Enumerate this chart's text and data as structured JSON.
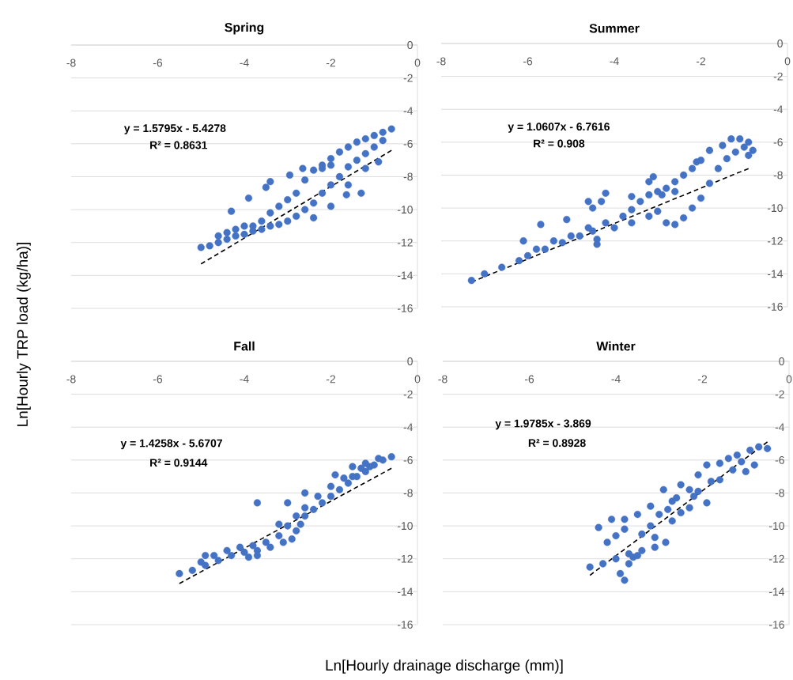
{
  "chart_data": [
    {
      "type": "scatter",
      "title": "Spring",
      "ylabel": "Ln[Hourly TRP load (kg/ha)]",
      "xlim": [
        -8,
        0
      ],
      "ylim": [
        -16,
        0
      ],
      "xticks": [
        -8,
        -6,
        -4,
        -2,
        0
      ],
      "yticks": [
        0,
        -2,
        -4,
        -6,
        -8,
        -10,
        -12,
        -14,
        -16
      ],
      "grid": "y",
      "marker": "circle",
      "annotations": [
        "y = 1.5795x - 5.4278",
        "R² = 0.8631"
      ],
      "series": [
        {
          "type": "scatter",
          "color": "#4472c4",
          "x": [
            -5.0,
            -4.8,
            -4.6,
            -4.4,
            -4.2,
            -4.0,
            -3.8,
            -3.6,
            -3.4,
            -3.2,
            -3.0,
            -2.8,
            -2.6,
            -2.4,
            -2.2,
            -2.0,
            -1.8,
            -1.6,
            -1.4,
            -1.2,
            -1.0,
            -0.8,
            -0.6,
            -0.8,
            -1.0,
            -1.2,
            -1.4,
            -1.6,
            -1.8,
            -2.0,
            -2.2,
            -2.4,
            -2.6,
            -2.8,
            -3.0,
            -3.2,
            -3.4,
            -3.6,
            -3.8,
            -4.0,
            -4.2,
            -4.4,
            -4.6,
            -4.3,
            -3.9,
            -3.5,
            -2.65,
            -2.95,
            -3.4,
            -2.2,
            -2.0,
            -1.64,
            -1.3,
            -0.9,
            -2.4,
            -2.0,
            -1.6,
            -1.2
          ],
          "values": [
            -12.3,
            -12.2,
            -12.0,
            -11.8,
            -11.6,
            -11.5,
            -11.3,
            -11.2,
            -11.0,
            -10.9,
            -10.7,
            -10.4,
            -10.0,
            -9.6,
            -9.0,
            -8.5,
            -8.0,
            -7.4,
            -7.0,
            -6.6,
            -6.2,
            -5.8,
            -5.1,
            -5.3,
            -5.5,
            -5.7,
            -5.9,
            -6.2,
            -6.5,
            -6.9,
            -7.3,
            -7.6,
            -8.2,
            -9.0,
            -9.4,
            -9.8,
            -10.2,
            -10.7,
            -11.0,
            -11.0,
            -11.2,
            -11.4,
            -11.6,
            -10.1,
            -9.3,
            -8.65,
            -7.5,
            -7.9,
            -8.3,
            -7.5,
            -7.3,
            -9.1,
            -9.0,
            -7.1,
            -10.5,
            -9.8,
            -8.5,
            -7.5
          ]
        },
        {
          "type": "line",
          "marker": "none",
          "color": "#000000",
          "line_style": "dashed",
          "x": [
            -5.0,
            -0.6
          ],
          "values": [
            -13.3,
            -6.4
          ]
        }
      ]
    },
    {
      "type": "scatter",
      "title": "Summer",
      "xlim": [
        -8,
        0
      ],
      "ylim": [
        -16,
        0
      ],
      "xticks": [
        -8,
        -6,
        -4,
        -2,
        0
      ],
      "yticks": [
        0,
        -2,
        -4,
        -6,
        -8,
        -10,
        -12,
        -14,
        -16
      ],
      "grid": "y",
      "marker": "circle",
      "annotations": [
        "y = 1.0607x - 6.7616",
        "R² = 0.908"
      ],
      "series": [
        {
          "type": "scatter",
          "color": "#4472c4",
          "x": [
            -7.3,
            -7.0,
            -6.6,
            -6.2,
            -6.0,
            -5.6,
            -5.2,
            -4.8,
            -4.5,
            -4.4,
            -4.4,
            -4.0,
            -3.6,
            -3.2,
            -3.0,
            -2.8,
            -2.6,
            -2.4,
            -2.2,
            -2.0,
            -1.8,
            -1.6,
            -1.4,
            -1.2,
            -1.0,
            -0.8,
            -0.9,
            -1.1,
            -1.3,
            -1.5,
            -1.8,
            -2.0,
            -2.2,
            -2.4,
            -2.6,
            -2.8,
            -3.0,
            -3.2,
            -3.4,
            -3.6,
            -3.8,
            -4.2,
            -4.6,
            -5.0,
            -5.4,
            -5.8,
            -6.1,
            -5.7,
            -5.1,
            -4.6,
            -4.5,
            -4.3,
            -4.2,
            -3.6,
            -3.1,
            -3.2,
            -2.9,
            -2.6,
            -2.1,
            -0.9
          ],
          "values": [
            -14.4,
            -14.0,
            -13.6,
            -13.2,
            -12.9,
            -12.5,
            -12.1,
            -11.7,
            -11.4,
            -11.9,
            -12.2,
            -11.2,
            -10.9,
            -10.5,
            -10.2,
            -10.9,
            -11.0,
            -10.6,
            -10.0,
            -9.4,
            -8.5,
            -7.6,
            -7.0,
            -6.6,
            -6.3,
            -6.5,
            -6.0,
            -5.8,
            -5.8,
            -6.2,
            -6.5,
            -7.1,
            -7.6,
            -8.0,
            -8.4,
            -8.8,
            -9.0,
            -9.2,
            -9.6,
            -10.1,
            -10.5,
            -10.9,
            -11.2,
            -11.7,
            -12.0,
            -12.5,
            -12.0,
            -11.0,
            -10.7,
            -9.6,
            -10.0,
            -9.6,
            -9.1,
            -9.3,
            -8.1,
            -8.4,
            -9.2,
            -9.0,
            -7.2,
            -6.8
          ]
        },
        {
          "type": "line",
          "marker": "none",
          "color": "#000000",
          "line_style": "dashed",
          "x": [
            -7.3,
            -0.9
          ],
          "values": [
            -14.5,
            -7.6
          ]
        }
      ]
    },
    {
      "type": "scatter",
      "title": "Fall",
      "xlabel": "Ln[Hourly drainage discharge (mm)]",
      "xlim": [
        -8,
        0
      ],
      "ylim": [
        -16,
        0
      ],
      "xticks": [
        -8,
        -6,
        -4,
        -2,
        0
      ],
      "yticks": [
        0,
        -2,
        -4,
        -6,
        -8,
        -10,
        -12,
        -14,
        -16
      ],
      "grid": "y",
      "marker": "circle",
      "annotations": [
        "y = 1.4258x - 5.6707",
        "R² = 0.9144"
      ],
      "series": [
        {
          "type": "scatter",
          "color": "#4472c4",
          "x": [
            -5.5,
            -5.2,
            -4.9,
            -4.6,
            -4.3,
            -4.0,
            -3.7,
            -3.4,
            -3.1,
            -2.9,
            -2.8,
            -2.7,
            -2.6,
            -2.4,
            -2.2,
            -2.0,
            -1.8,
            -1.6,
            -1.4,
            -1.2,
            -1.0,
            -0.8,
            -0.6,
            -0.9,
            -1.2,
            -1.5,
            -1.3,
            -1.7,
            -2.0,
            -2.3,
            -2.6,
            -2.8,
            -3.0,
            -3.2,
            -3.5,
            -3.8,
            -4.1,
            -4.4,
            -4.7,
            -5.0,
            -4.9,
            -3.9,
            -3.7,
            -3.7,
            -3.0,
            -3.2,
            -2.6,
            -1.9,
            -1.5,
            -1.1
          ],
          "values": [
            -12.9,
            -12.7,
            -12.4,
            -12.1,
            -11.8,
            -11.6,
            -11.5,
            -11.3,
            -11.0,
            -10.8,
            -10.3,
            -9.9,
            -9.4,
            -9.0,
            -8.6,
            -8.2,
            -7.8,
            -7.4,
            -7.0,
            -6.7,
            -6.3,
            -6.0,
            -5.8,
            -5.9,
            -6.2,
            -6.4,
            -6.5,
            -7.1,
            -7.6,
            -8.2,
            -8.9,
            -9.4,
            -10.0,
            -10.6,
            -11.0,
            -11.2,
            -11.3,
            -11.5,
            -11.8,
            -12.2,
            -11.8,
            -11.9,
            -11.8,
            -8.6,
            -8.6,
            -9.9,
            -8.0,
            -6.9,
            -7.0,
            -6.4
          ]
        },
        {
          "type": "line",
          "marker": "none",
          "color": "#000000",
          "line_style": "dashed",
          "x": [
            -5.5,
            -0.6
          ],
          "values": [
            -13.5,
            -6.5
          ]
        }
      ]
    },
    {
      "type": "scatter",
      "title": "Winter",
      "xlim": [
        -8,
        0
      ],
      "ylim": [
        -16,
        0
      ],
      "xticks": [
        -8,
        -6,
        -4,
        -2,
        0
      ],
      "yticks": [
        0,
        -2,
        -4,
        -6,
        -8,
        -10,
        -12,
        -14,
        -16
      ],
      "grid": "y",
      "marker": "circle",
      "annotations": [
        "y = 1.9785x - 3.869",
        "R² = 0.8928"
      ],
      "series": [
        {
          "type": "scatter",
          "color": "#4472c4",
          "x": [
            -4.6,
            -4.3,
            -4.0,
            -3.7,
            -3.4,
            -3.1,
            -2.85,
            -3.8,
            -3.9,
            -3.7,
            -3.6,
            -4.2,
            -4.0,
            -3.8,
            -3.8,
            -3.5,
            -3.2,
            -3.4,
            -3.2,
            -3.0,
            -2.9,
            -2.7,
            -2.5,
            -2.3,
            -2.1,
            -1.9,
            -1.6,
            -1.4,
            -1.2,
            -0.9,
            -0.7,
            -0.5,
            -0.8,
            -1.0,
            -1.3,
            -1.6,
            -1.9,
            -2.1,
            -2.3,
            -2.5,
            -2.7,
            -3.1,
            -3.5,
            -2.2,
            -1.8,
            -2.6,
            -2.8,
            -4.4,
            -4.1,
            -1.1
          ],
          "values": [
            -12.5,
            -12.3,
            -12.0,
            -11.7,
            -11.5,
            -11.3,
            -11.0,
            -13.3,
            -12.9,
            -12.3,
            -11.9,
            -11.0,
            -10.6,
            -10.2,
            -9.6,
            -9.3,
            -8.8,
            -10.5,
            -10.0,
            -9.3,
            -7.8,
            -8.5,
            -7.5,
            -7.8,
            -6.9,
            -6.3,
            -6.2,
            -5.9,
            -5.7,
            -5.4,
            -5.2,
            -5.3,
            -6.3,
            -6.7,
            -6.6,
            -7.2,
            -8.6,
            -7.9,
            -8.9,
            -9.2,
            -9.7,
            -10.7,
            -11.8,
            -8.2,
            -7.3,
            -8.3,
            -9.0,
            -10.1,
            -9.6,
            -6.1
          ]
        },
        {
          "type": "line",
          "marker": "none",
          "color": "#000000",
          "line_style": "dashed",
          "x": [
            -4.6,
            -0.5
          ],
          "values": [
            -13.0,
            -4.9
          ]
        }
      ]
    }
  ]
}
